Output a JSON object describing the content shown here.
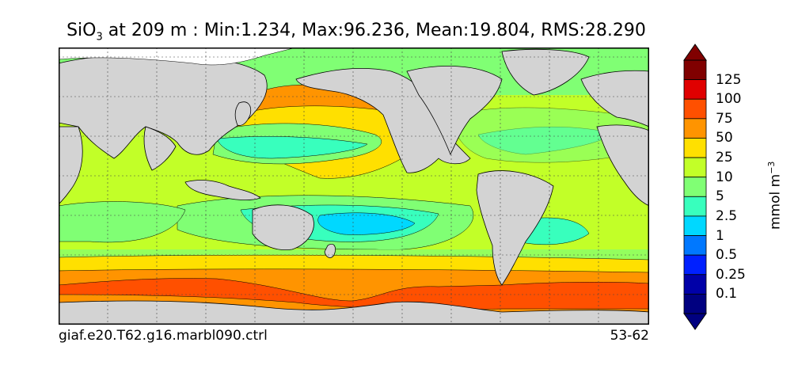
{
  "title": {
    "species": "SiO",
    "subscript": "3",
    "rest": " at 209 m : Min:1.234, Max:96.236, Mean:19.804, RMS:28.290"
  },
  "footer": {
    "case_name": "giaf.e20.T62.g16.marbl090.ctrl",
    "years": "53-62"
  },
  "colorbar": {
    "units": "mmol m",
    "units_exponent": "−3",
    "labels": [
      "125",
      "100",
      "75",
      "50",
      "25",
      "10",
      "5",
      "2.5",
      "1",
      "0.5",
      "0.25",
      "0.1"
    ],
    "colors": [
      "#800000",
      "#e00000",
      "#ff5000",
      "#ff9400",
      "#ffe000",
      "#c2ff28",
      "#80ff74",
      "#38ffbd",
      "#00d8ff",
      "#0078ff",
      "#0020ff",
      "#0000a8",
      "#000080"
    ],
    "over_color": "#800000",
    "under_color": "#000080"
  },
  "colors": {
    "land": "#d3d3d3",
    "no_data": "#ffffff"
  }
}
